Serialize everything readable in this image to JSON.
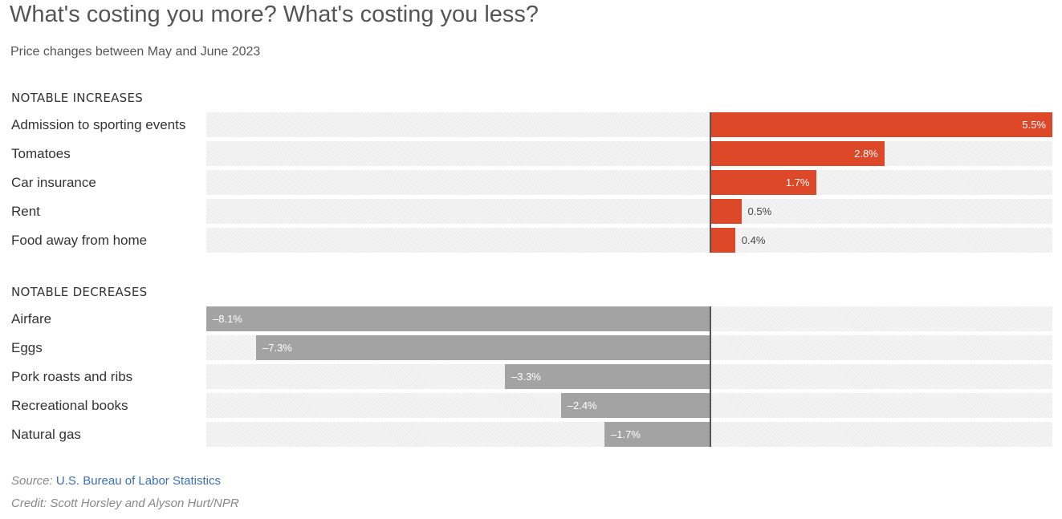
{
  "chart_data": {
    "type": "bar",
    "orientation": "horizontal",
    "title": "What's costing you more? What's costing you less?",
    "subtitle": "Price changes between May and June 2023",
    "xlim": [
      -8.1,
      5.5
    ],
    "groups": [
      {
        "name": "NOTABLE INCREASES",
        "color": "#dc4828",
        "categories": [
          "Admission to sporting events",
          "Tomatoes",
          "Car insurance",
          "Rent",
          "Food away from home"
        ],
        "values": [
          5.5,
          2.8,
          1.7,
          0.5,
          0.4
        ],
        "labels": [
          "5.5%",
          "2.8%",
          "1.7%",
          "0.5%",
          "0.4%"
        ]
      },
      {
        "name": "NOTABLE DECREASES",
        "color": "#a3a3a3",
        "categories": [
          "Airfare",
          "Eggs",
          "Pork roasts and ribs",
          "Recreational books",
          "Natural gas"
        ],
        "values": [
          -8.1,
          -7.3,
          -3.3,
          -2.4,
          -1.7
        ],
        "labels": [
          "–8.1%",
          "–7.3%",
          "–3.3%",
          "–2.4%",
          "–1.7%"
        ]
      }
    ]
  },
  "footer": {
    "source_label": "Source:",
    "source_text": "U.S. Bureau of Labor Statistics",
    "credit": "Credit: Scott Horsley and Alyson Hurt/NPR"
  }
}
